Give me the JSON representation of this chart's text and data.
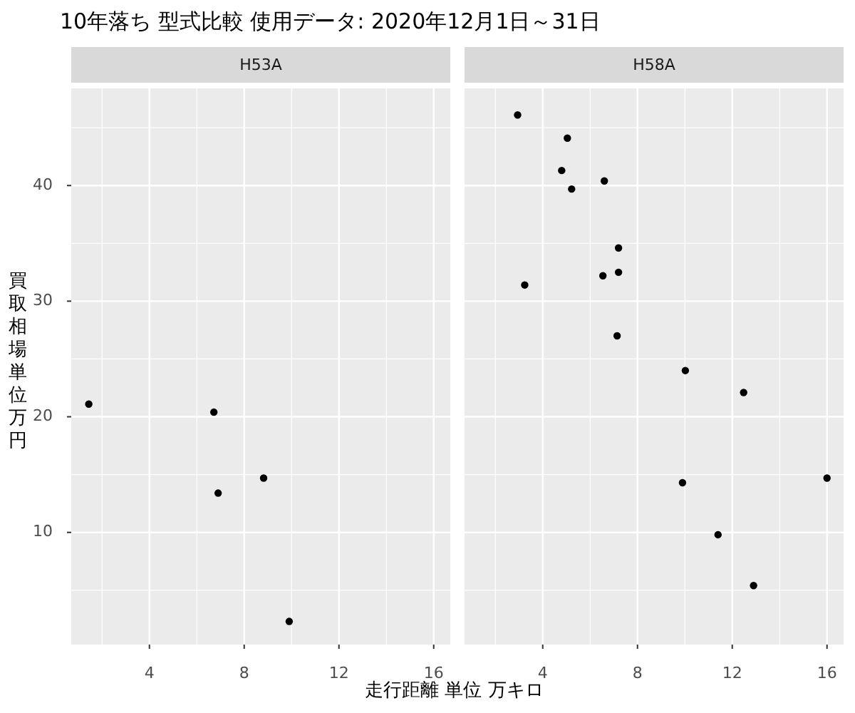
{
  "chart_data": [
    {
      "type": "scatter",
      "title": "10年落ち 型式比較 使用データ: 2020年12月1日～31日",
      "subtitle": "H53A",
      "ylabel": "買取相場単位万円",
      "grid": true,
      "legend": false,
      "marker": "circle",
      "x": [
        1.44,
        6.72,
        6.9,
        8.82,
        9.9
      ],
      "series": [
        {
          "color": "#000000",
          "values": [
            21.1,
            20.4,
            13.4,
            14.7,
            2.3
          ]
        }
      ],
      "xlim": [
        0.7,
        16.7
      ],
      "xticks": [
        4,
        8,
        12,
        16
      ],
      "ylim": [
        0.3,
        48.4
      ],
      "yticks": [
        10,
        20,
        30,
        40
      ]
    },
    {
      "type": "scatter",
      "subtitle": "H58A",
      "xlabel": "走行距離 単位 万キロ",
      "grid": true,
      "legend": false,
      "marker": "circle",
      "tick_labels": "x",
      "x": [
        2.94,
        5.04,
        4.8,
        6.6,
        5.22,
        7.2,
        7.2,
        6.54,
        3.24,
        7.14,
        10.02,
        12.48,
        9.9,
        16.0,
        11.4,
        12.9
      ],
      "series": [
        {
          "color": "#000000",
          "values": [
            46.1,
            44.1,
            41.3,
            40.4,
            39.7,
            34.6,
            32.5,
            32.2,
            31.4,
            27.0,
            24.0,
            22.1,
            14.3,
            14.7,
            9.8,
            5.4
          ]
        }
      ],
      "xlim": [
        0.7,
        16.7
      ],
      "xticks": [
        4,
        8,
        12,
        16
      ],
      "ylim": [
        0.3,
        48.4
      ],
      "yticks": [
        10,
        20,
        30,
        40
      ]
    }
  ]
}
